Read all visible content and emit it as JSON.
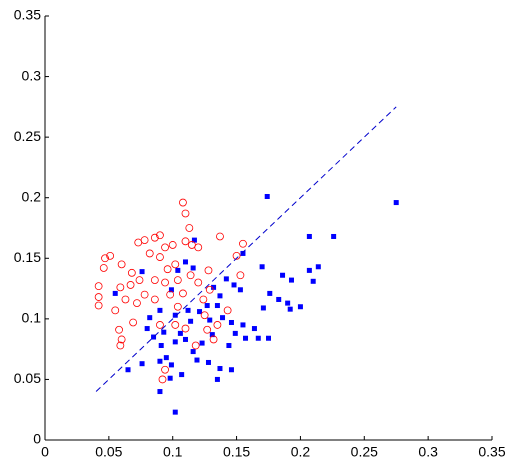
{
  "chart_data": {
    "type": "scatter",
    "xlim": [
      0,
      0.35
    ],
    "ylim": [
      0,
      0.35
    ],
    "xticks": [
      0,
      0.05,
      0.1,
      0.15,
      0.2,
      0.25,
      0.3,
      0.35
    ],
    "yticks": [
      0,
      0.05,
      0.1,
      0.15,
      0.2,
      0.25,
      0.3,
      0.35
    ],
    "series": [
      {
        "color": "#0000ff",
        "marker": "square",
        "x": [
          0.174,
          0.275,
          0.155,
          0.17,
          0.207,
          0.226,
          0.214,
          0.207,
          0.21,
          0.186,
          0.193,
          0.176,
          0.183,
          0.19,
          0.192,
          0.2,
          0.171,
          0.153,
          0.148,
          0.142,
          0.132,
          0.137,
          0.135,
          0.127,
          0.121,
          0.129,
          0.139,
          0.146,
          0.155,
          0.164,
          0.157,
          0.167,
          0.175,
          0.149,
          0.144,
          0.131,
          0.123,
          0.116,
          0.11,
          0.106,
          0.102,
          0.093,
          0.091,
          0.095,
          0.09,
          0.099,
          0.107,
          0.098,
          0.09,
          0.102,
          0.065,
          0.076,
          0.128,
          0.137,
          0.135,
          0.146,
          0.119,
          0.082,
          0.08,
          0.09,
          0.102,
          0.11,
          0.104,
          0.099,
          0.117,
          0.116,
          0.112,
          0.114,
          0.055,
          0.085,
          0.076
        ],
        "values": [
          0.201,
          0.196,
          0.154,
          0.143,
          0.168,
          0.168,
          0.143,
          0.14,
          0.131,
          0.136,
          0.132,
          0.121,
          0.116,
          0.113,
          0.108,
          0.11,
          0.109,
          0.124,
          0.128,
          0.133,
          0.126,
          0.119,
          0.111,
          0.111,
          0.106,
          0.099,
          0.101,
          0.097,
          0.095,
          0.092,
          0.084,
          0.084,
          0.084,
          0.088,
          0.078,
          0.087,
          0.08,
          0.073,
          0.083,
          0.088,
          0.081,
          0.089,
          0.078,
          0.068,
          0.065,
          0.062,
          0.054,
          0.051,
          0.04,
          0.023,
          0.058,
          0.063,
          0.064,
          0.059,
          0.05,
          0.058,
          0.066,
          0.101,
          0.092,
          0.107,
          0.103,
          0.147,
          0.14,
          0.124,
          0.165,
          0.142,
          0.107,
          0.098,
          0.121,
          0.085,
          0.139
        ]
      },
      {
        "color": "#ff0000",
        "marker": "circle",
        "x": [
          0.108,
          0.11,
          0.113,
          0.137,
          0.155,
          0.15,
          0.11,
          0.1,
          0.115,
          0.12,
          0.09,
          0.086,
          0.078,
          0.073,
          0.094,
          0.082,
          0.09,
          0.047,
          0.051,
          0.06,
          0.046,
          0.068,
          0.074,
          0.086,
          0.094,
          0.104,
          0.102,
          0.096,
          0.114,
          0.12,
          0.129,
          0.124,
          0.108,
          0.098,
          0.086,
          0.078,
          0.067,
          0.059,
          0.042,
          0.042,
          0.042,
          0.055,
          0.063,
          0.072,
          0.069,
          0.058,
          0.06,
          0.059,
          0.09,
          0.102,
          0.11,
          0.125,
          0.135,
          0.127,
          0.143,
          0.132,
          0.118,
          0.094,
          0.092,
          0.153,
          0.128,
          0.104
        ],
        "values": [
          0.196,
          0.187,
          0.175,
          0.168,
          0.162,
          0.152,
          0.164,
          0.161,
          0.161,
          0.159,
          0.169,
          0.167,
          0.165,
          0.163,
          0.159,
          0.154,
          0.151,
          0.15,
          0.152,
          0.145,
          0.142,
          0.138,
          0.132,
          0.132,
          0.13,
          0.132,
          0.145,
          0.141,
          0.136,
          0.13,
          0.124,
          0.116,
          0.121,
          0.12,
          0.116,
          0.12,
          0.128,
          0.126,
          0.127,
          0.118,
          0.111,
          0.107,
          0.116,
          0.113,
          0.097,
          0.091,
          0.083,
          0.078,
          0.095,
          0.095,
          0.092,
          0.103,
          0.095,
          0.091,
          0.107,
          0.083,
          0.078,
          0.058,
          0.05,
          0.136,
          0.14,
          0.11
        ]
      },
      {
        "color": "#0000cc",
        "marker": "dashed-line",
        "x": [
          0.04,
          0.275
        ],
        "values": [
          0.04,
          0.275
        ]
      }
    ]
  }
}
